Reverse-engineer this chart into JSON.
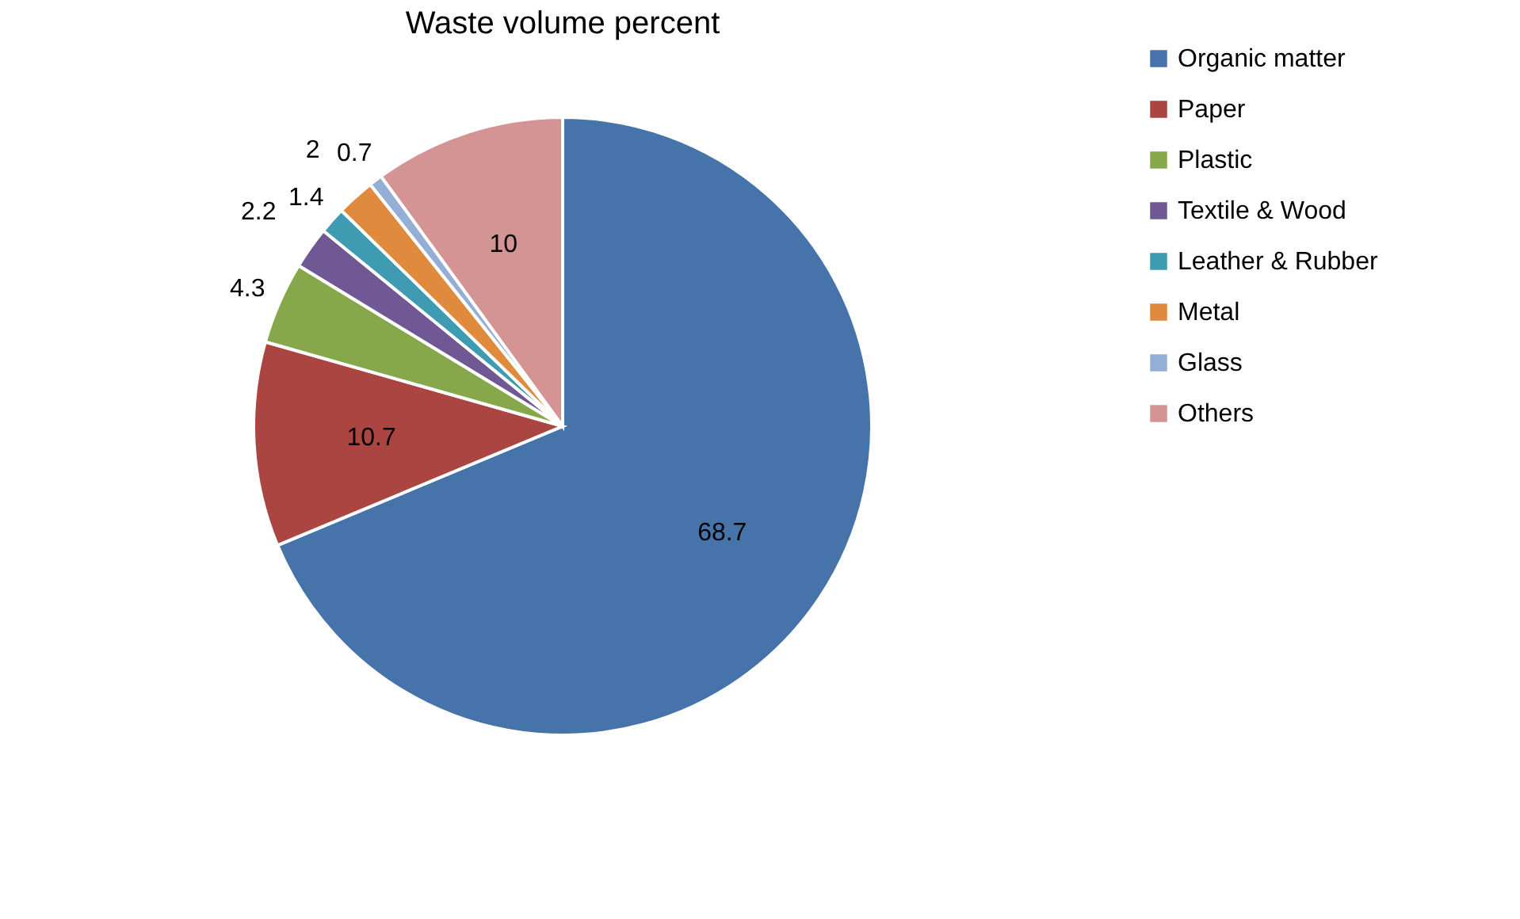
{
  "chart_data": {
    "type": "pie",
    "title": "Waste volume percent",
    "categories": [
      "Organic matter",
      "Paper",
      "Plastic",
      "Textile & Wood",
      "Leather & Rubber",
      "Metal",
      "Glass",
      "Others"
    ],
    "values": [
      68.7,
      10.7,
      4.3,
      2.2,
      1.4,
      2,
      0.7,
      10
    ],
    "colors": [
      "#4674aa",
      "#aa4541",
      "#87a84a",
      "#6f5893",
      "#3e9bb1",
      "#df8a3c",
      "#95aed5",
      "#d39493"
    ],
    "data_labels": true,
    "legend": "right"
  }
}
